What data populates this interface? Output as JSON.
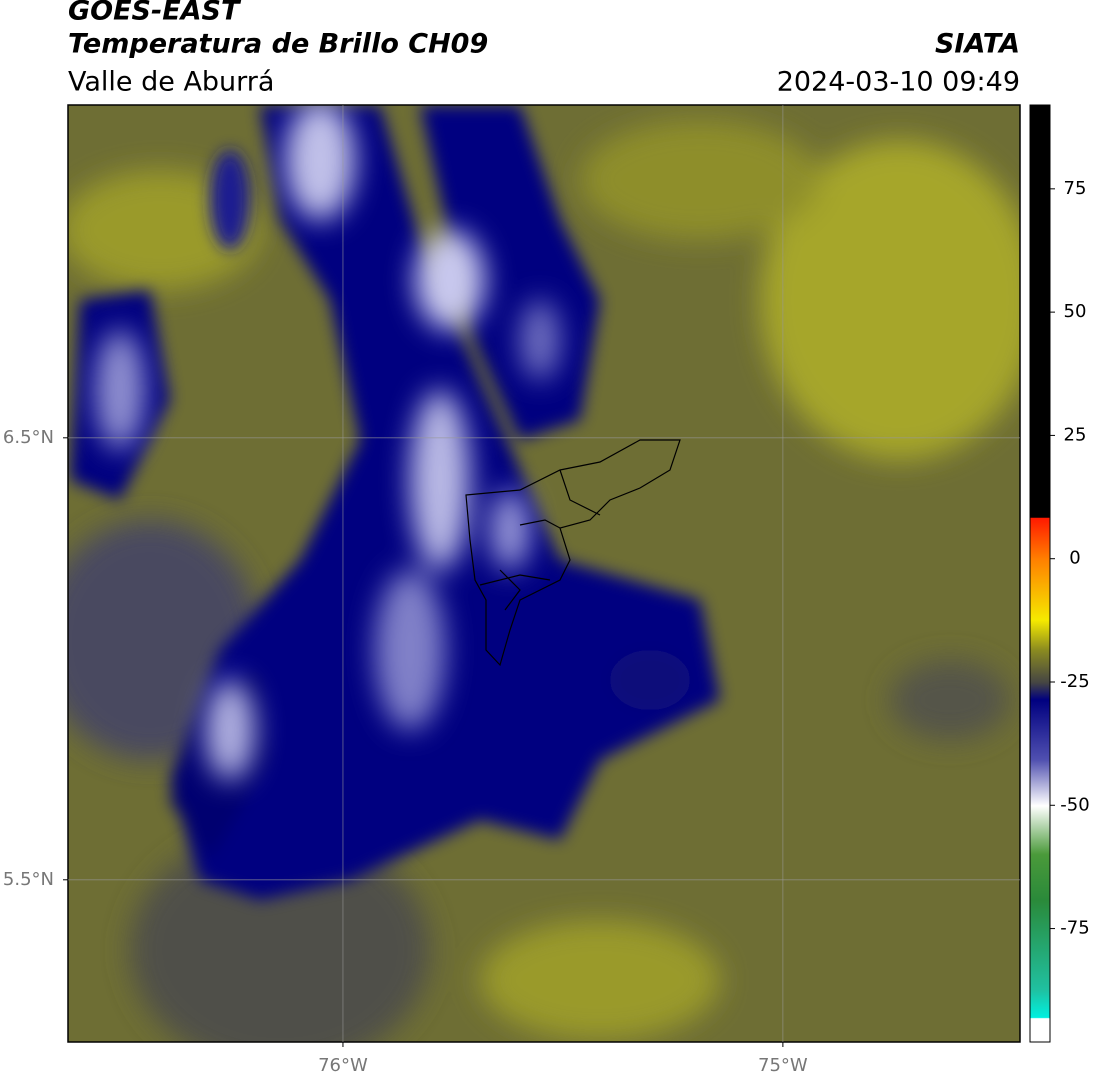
{
  "header": {
    "title": "GOES-EAST",
    "subtitle": "Temperatura de Brillo CH09",
    "source": "SIATA",
    "region": "Valle de Aburrá",
    "datetime": "2024-03-10 09:49"
  },
  "map": {
    "xlim": [
      -76.625,
      -74.461
    ],
    "ylim": [
      5.133,
      7.253
    ],
    "xticks": [
      {
        "value": -76,
        "label": "76°W"
      },
      {
        "value": -75,
        "label": "75°W"
      }
    ],
    "yticks": [
      {
        "value": 6.5,
        "label": "6.5°N"
      },
      {
        "value": 5.5,
        "label": "5.5°N"
      }
    ],
    "grid": true
  },
  "colorbar": {
    "lim": [
      -98,
      92
    ],
    "ticks": [
      75,
      50,
      25,
      0,
      -25,
      -50,
      -75
    ]
  }
}
